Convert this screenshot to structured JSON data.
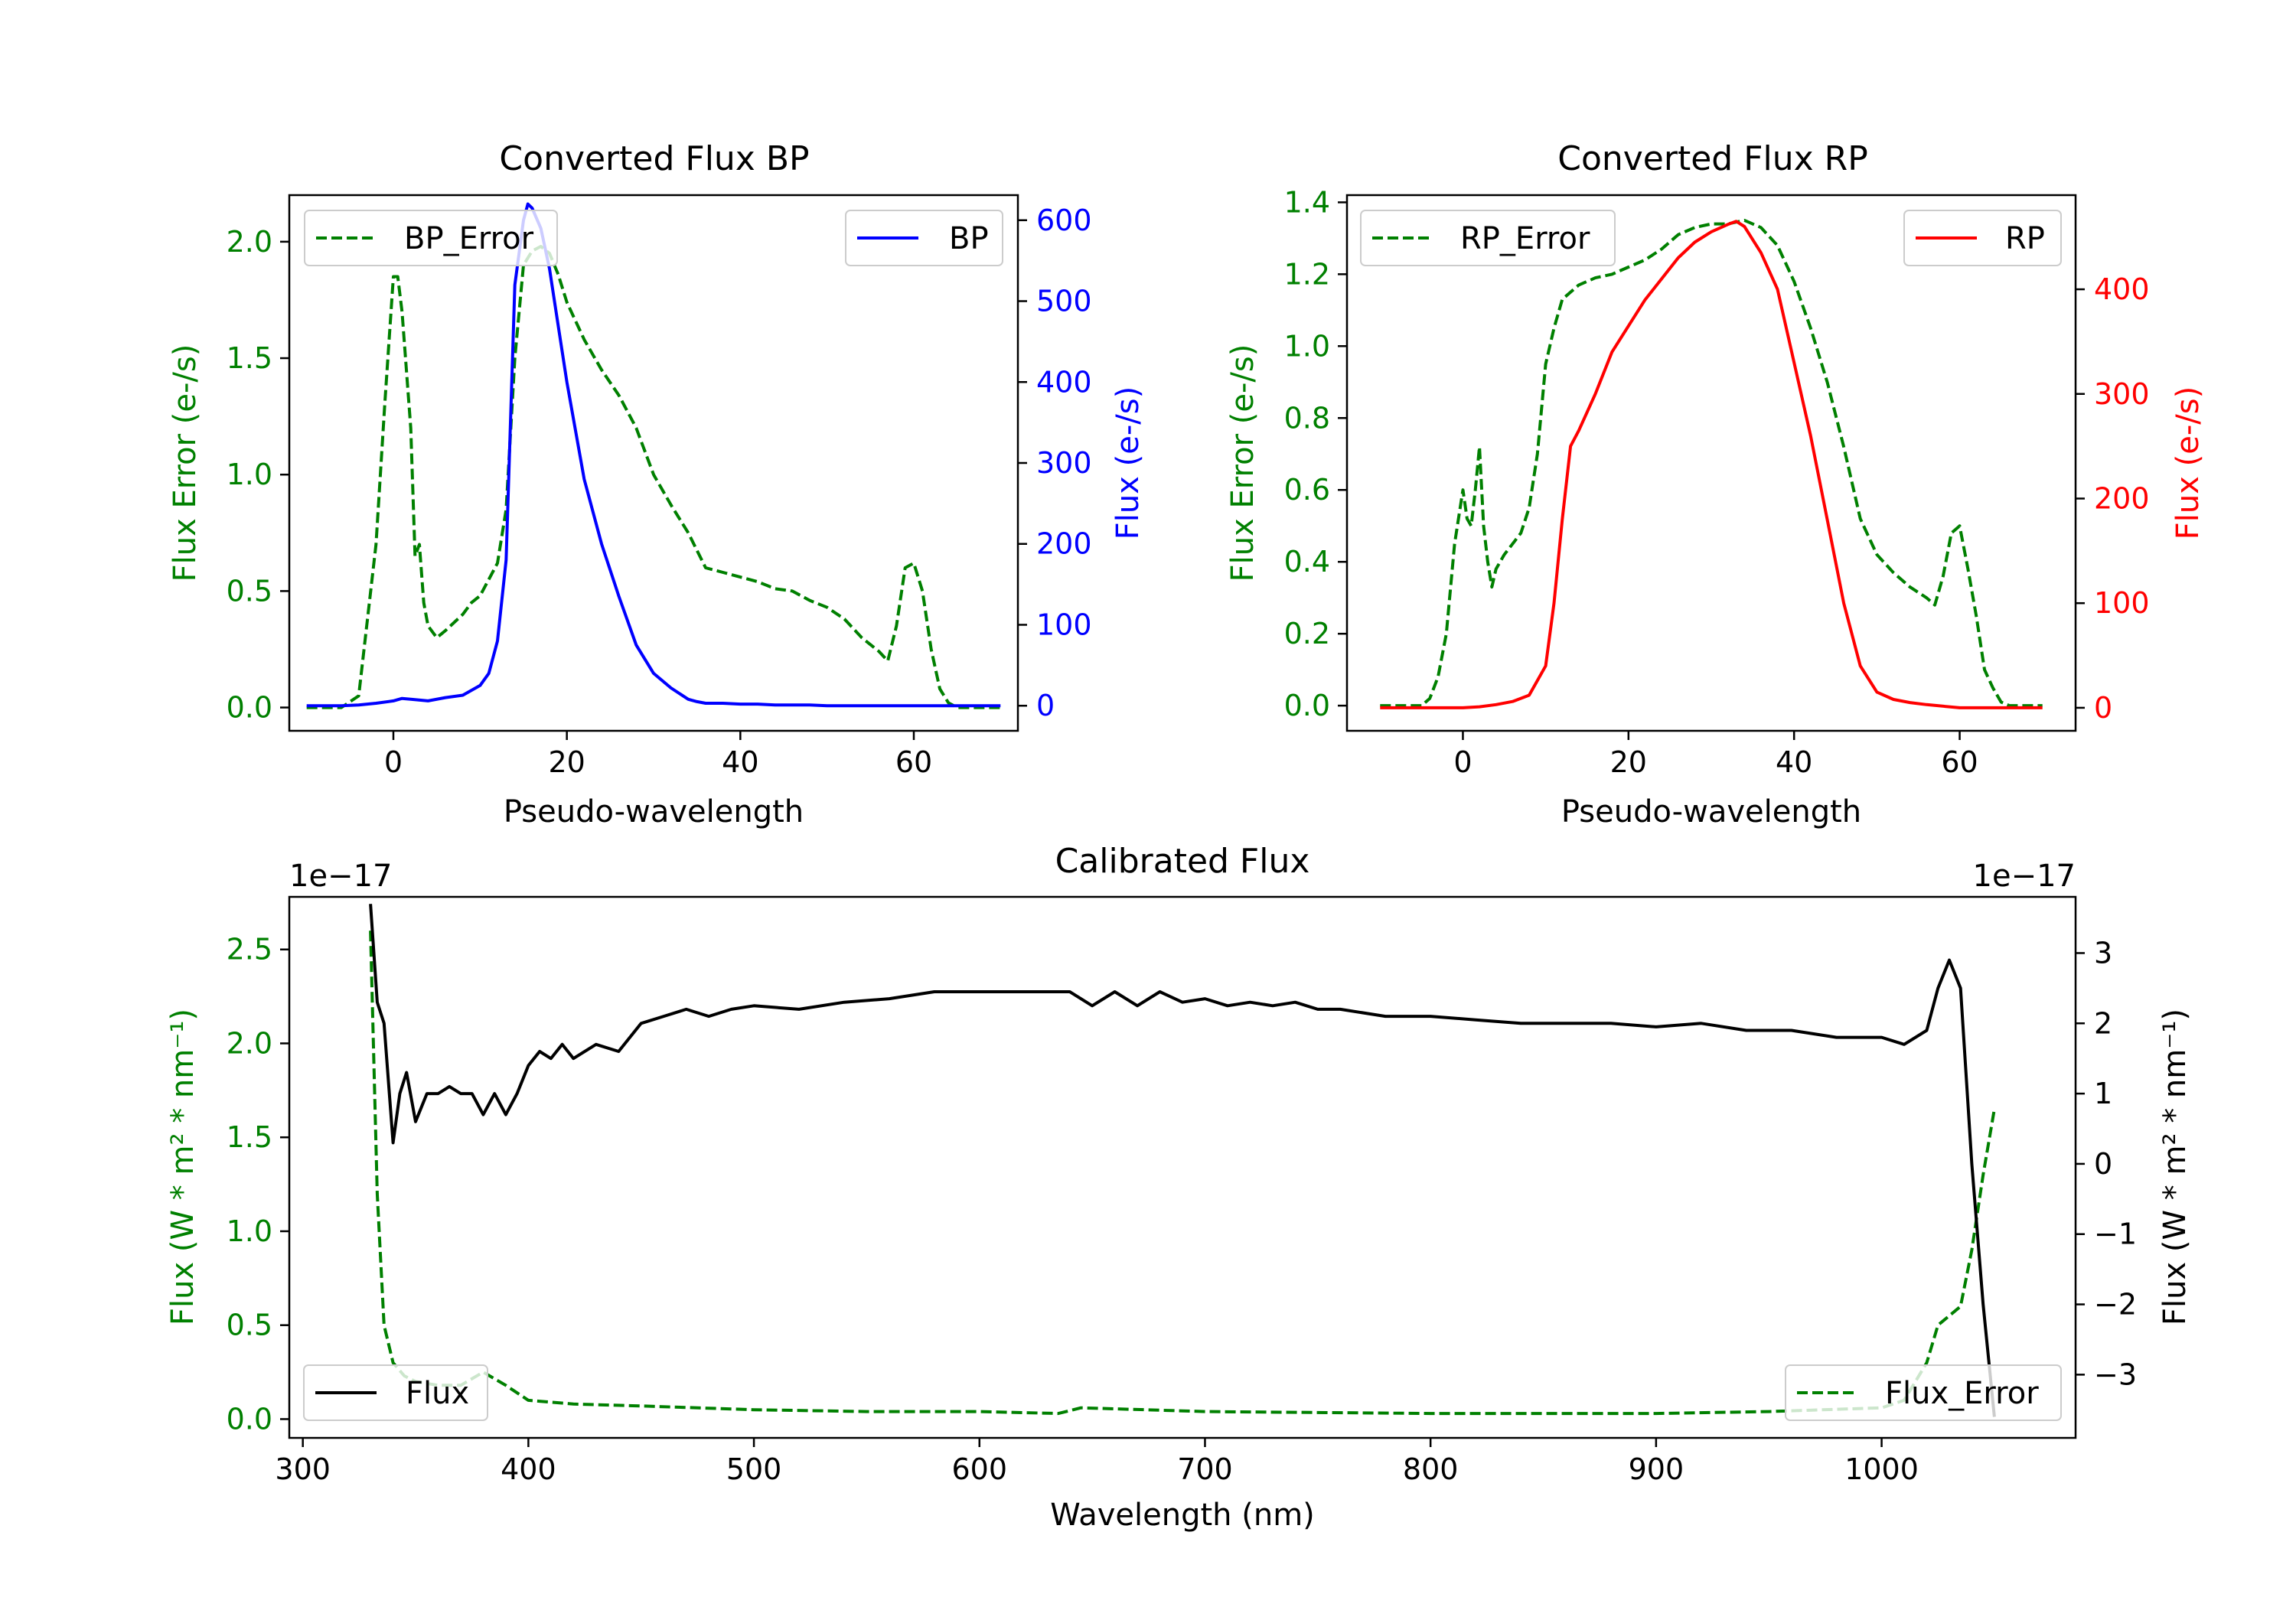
{
  "figure": {
    "title": ""
  },
  "chart_data": [
    {
      "id": "bp",
      "type": "line",
      "title": "Converted Flux BP",
      "xlabel": "Pseudo-wavelength",
      "xlim": [
        -12,
        72
      ],
      "xticks": [
        0,
        20,
        40,
        60
      ],
      "xtick_labels": [
        "0",
        "20",
        "40",
        "60"
      ],
      "left_axis": {
        "label": "Flux Error (e-/s)",
        "color": "#008000",
        "ylim": [
          -0.1,
          2.2
        ],
        "ticks": [
          0.0,
          0.5,
          1.0,
          1.5,
          2.0
        ],
        "tick_labels": [
          "0.0",
          "0.5",
          "1.0",
          "1.5",
          "2.0"
        ]
      },
      "right_axis": {
        "label": "Flux (e-/s)",
        "color": "#0000ff",
        "ylim": [
          -31,
          631
        ],
        "ticks": [
          0,
          100,
          200,
          300,
          400,
          500,
          600
        ],
        "tick_labels": [
          "0",
          "100",
          "200",
          "300",
          "400",
          "500",
          "600"
        ]
      },
      "series": [
        {
          "name": "BP_Error",
          "axis": "left",
          "style": "dashed",
          "color": "#008000",
          "x": [
            -10,
            -6,
            -4,
            -2,
            -1,
            0,
            0.5,
            1,
            2,
            2.5,
            3,
            3.5,
            4,
            5,
            6,
            8,
            9,
            10,
            12,
            13,
            14,
            15,
            16,
            17,
            18,
            19,
            20,
            22,
            24,
            26,
            28,
            30,
            32,
            34,
            36,
            38,
            40,
            42,
            44,
            46,
            48,
            50,
            52,
            54,
            56,
            57,
            58,
            59,
            60,
            61,
            62,
            63,
            64,
            65,
            66,
            68,
            70
          ],
          "y": [
            0,
            0,
            0.05,
            0.7,
            1.3,
            1.85,
            1.85,
            1.7,
            1.2,
            0.65,
            0.7,
            0.45,
            0.35,
            0.3,
            0.33,
            0.4,
            0.45,
            0.48,
            0.62,
            0.85,
            1.5,
            1.9,
            1.96,
            1.98,
            1.95,
            1.86,
            1.74,
            1.58,
            1.45,
            1.34,
            1.2,
            1.0,
            0.87,
            0.75,
            0.6,
            0.58,
            0.56,
            0.54,
            0.51,
            0.5,
            0.46,
            0.43,
            0.38,
            0.3,
            0.24,
            0.2,
            0.35,
            0.6,
            0.62,
            0.5,
            0.25,
            0.08,
            0.02,
            0,
            0,
            0,
            0
          ]
        },
        {
          "name": "BP",
          "axis": "right",
          "style": "solid",
          "color": "#0000ff",
          "x": [
            -10,
            -6,
            -4,
            -2,
            0,
            1,
            2,
            4,
            6,
            8,
            10,
            11,
            12,
            13,
            14,
            15,
            15.5,
            16,
            17,
            18,
            19,
            20,
            22,
            24,
            26,
            28,
            30,
            32,
            34,
            35,
            36,
            38,
            40,
            42,
            44,
            46,
            48,
            50,
            55,
            60,
            65,
            70
          ],
          "y": [
            0,
            0,
            1,
            3,
            6,
            9,
            8,
            6,
            10,
            13,
            25,
            40,
            80,
            180,
            520,
            600,
            620,
            615,
            590,
            540,
            470,
            400,
            280,
            200,
            135,
            75,
            40,
            22,
            8,
            5,
            3,
            3,
            2,
            2,
            1,
            1,
            1,
            0,
            0,
            0,
            0,
            0
          ]
        }
      ],
      "legend": [
        {
          "label": "BP_Error",
          "position": "upper-left"
        },
        {
          "label": "BP",
          "position": "upper-right"
        }
      ]
    },
    {
      "id": "rp",
      "type": "line",
      "title": "Converted Flux RP",
      "xlabel": "Pseudo-wavelength",
      "xlim": [
        -14,
        74
      ],
      "xticks": [
        0,
        20,
        40,
        60
      ],
      "xtick_labels": [
        "0",
        "20",
        "40",
        "60"
      ],
      "left_axis": {
        "label": "Flux Error (e-/s)",
        "color": "#008000",
        "ylim": [
          -0.07,
          1.42
        ],
        "ticks": [
          0.0,
          0.2,
          0.4,
          0.6,
          0.8,
          1.0,
          1.2,
          1.4
        ],
        "tick_labels": [
          "0.0",
          "0.2",
          "0.4",
          "0.6",
          "0.8",
          "1.0",
          "1.2",
          "1.4"
        ]
      },
      "right_axis": {
        "label": "Flux (e-/s)",
        "color": "#ff0000",
        "ylim": [
          -22,
          490
        ],
        "ticks": [
          0,
          100,
          200,
          300,
          400
        ],
        "tick_labels": [
          "0",
          "100",
          "200",
          "300",
          "400"
        ]
      },
      "series": [
        {
          "name": "RP_Error",
          "axis": "left",
          "style": "dashed",
          "color": "#008000",
          "x": [
            -10,
            -5,
            -4,
            -3,
            -2,
            -1,
            0,
            0.5,
            1,
            1.5,
            2,
            2.5,
            3,
            3.5,
            4,
            5,
            6,
            7,
            8,
            9,
            10,
            11,
            12,
            13,
            14,
            16,
            18,
            20,
            22,
            24,
            26,
            28,
            30,
            32,
            34,
            36,
            38,
            40,
            42,
            44,
            46,
            48,
            50,
            52,
            54,
            56,
            57,
            58,
            59,
            60,
            61,
            62,
            63,
            64,
            65,
            66,
            68,
            70
          ],
          "y": [
            0,
            0,
            0.02,
            0.08,
            0.2,
            0.45,
            0.6,
            0.52,
            0.5,
            0.6,
            0.72,
            0.5,
            0.4,
            0.33,
            0.38,
            0.42,
            0.45,
            0.48,
            0.55,
            0.7,
            0.95,
            1.05,
            1.13,
            1.15,
            1.17,
            1.19,
            1.2,
            1.22,
            1.24,
            1.27,
            1.31,
            1.33,
            1.34,
            1.34,
            1.35,
            1.33,
            1.28,
            1.18,
            1.05,
            0.9,
            0.72,
            0.52,
            0.42,
            0.37,
            0.33,
            0.3,
            0.28,
            0.36,
            0.48,
            0.5,
            0.38,
            0.25,
            0.1,
            0.05,
            0.01,
            0,
            0,
            0
          ]
        },
        {
          "name": "RP",
          "axis": "right",
          "style": "solid",
          "color": "#ff0000",
          "x": [
            -10,
            -5,
            0,
            2,
            4,
            6,
            8,
            10,
            11,
            12,
            13,
            14,
            16,
            18,
            20,
            22,
            24,
            26,
            28,
            30,
            32,
            33,
            34,
            36,
            38,
            40,
            42,
            44,
            46,
            48,
            50,
            52,
            54,
            56,
            60,
            65,
            70
          ],
          "y": [
            0,
            0,
            0,
            1,
            3,
            6,
            12,
            40,
            100,
            180,
            250,
            265,
            300,
            340,
            365,
            390,
            410,
            430,
            445,
            455,
            462,
            465,
            460,
            435,
            400,
            330,
            260,
            180,
            100,
            40,
            15,
            8,
            5,
            3,
            0,
            0,
            0
          ]
        }
      ],
      "legend": [
        {
          "label": "RP_Error",
          "position": "upper-left"
        },
        {
          "label": "RP",
          "position": "upper-right"
        }
      ]
    },
    {
      "id": "cal",
      "type": "line",
      "title": "Calibrated Flux",
      "xlabel": "Wavelength (nm)",
      "xlim": [
        294,
        1086
      ],
      "xticks": [
        300,
        400,
        500,
        600,
        700,
        800,
        900,
        1000
      ],
      "xtick_labels": [
        "300",
        "400",
        "500",
        "600",
        "700",
        "800",
        "900",
        "1000"
      ],
      "left_axis": {
        "label": "Flux (W * m² * nm⁻¹)",
        "color": "#008000",
        "offset_text": "1e−17",
        "ylim": [
          -0.1,
          2.78
        ],
        "ticks": [
          0.0,
          0.5,
          1.0,
          1.5,
          2.0,
          2.5
        ],
        "tick_labels": [
          "0.0",
          "0.5",
          "1.0",
          "1.5",
          "2.0",
          "2.5"
        ]
      },
      "right_axis": {
        "label": "Flux (W * m² * nm⁻¹)",
        "color": "#000000",
        "offset_text": "1e−17",
        "ylim": [
          -3.9,
          3.8
        ],
        "ticks": [
          -3,
          -2,
          -1,
          0,
          1,
          2,
          3
        ],
        "tick_labels": [
          "−3",
          "−2",
          "−1",
          "0",
          "1",
          "2",
          "3"
        ]
      },
      "series": [
        {
          "name": "Flux_Error",
          "axis": "left",
          "style": "dashed",
          "color": "#008000",
          "x": [
            330,
            333,
            336,
            340,
            345,
            350,
            360,
            370,
            380,
            390,
            400,
            420,
            450,
            500,
            550,
            600,
            635,
            645,
            700,
            800,
            900,
            950,
            1000,
            1010,
            1020,
            1025,
            1030,
            1035,
            1040,
            1045,
            1050
          ],
          "y": [
            2.6,
            1.2,
            0.5,
            0.3,
            0.23,
            0.2,
            0.18,
            0.18,
            0.25,
            0.18,
            0.1,
            0.08,
            0.07,
            0.05,
            0.04,
            0.04,
            0.03,
            0.06,
            0.04,
            0.03,
            0.03,
            0.04,
            0.06,
            0.1,
            0.3,
            0.5,
            0.55,
            0.6,
            0.9,
            1.3,
            1.65
          ]
        },
        {
          "name": "Flux",
          "axis": "right",
          "style": "solid",
          "color": "#000000",
          "x": [
            330,
            333,
            336,
            340,
            343,
            346,
            350,
            355,
            360,
            365,
            370,
            375,
            380,
            385,
            390,
            395,
            400,
            405,
            410,
            415,
            420,
            430,
            440,
            450,
            460,
            470,
            480,
            490,
            500,
            520,
            540,
            560,
            580,
            600,
            620,
            640,
            650,
            660,
            670,
            680,
            690,
            700,
            710,
            720,
            730,
            740,
            750,
            760,
            780,
            800,
            820,
            840,
            860,
            880,
            900,
            920,
            940,
            960,
            980,
            1000,
            1010,
            1020,
            1025,
            1030,
            1035,
            1040,
            1045,
            1050
          ],
          "y": [
            3.7,
            2.3,
            2.0,
            0.3,
            1.0,
            1.3,
            0.6,
            1.0,
            1.0,
            1.1,
            1.0,
            1.0,
            0.7,
            1.0,
            0.7,
            1.0,
            1.4,
            1.6,
            1.5,
            1.7,
            1.5,
            1.7,
            1.6,
            2.0,
            2.1,
            2.2,
            2.1,
            2.2,
            2.25,
            2.2,
            2.3,
            2.35,
            2.45,
            2.45,
            2.45,
            2.45,
            2.25,
            2.45,
            2.25,
            2.45,
            2.3,
            2.35,
            2.25,
            2.3,
            2.25,
            2.3,
            2.2,
            2.2,
            2.1,
            2.1,
            2.05,
            2.0,
            2.0,
            2.0,
            1.95,
            2.0,
            1.9,
            1.9,
            1.8,
            1.8,
            1.7,
            1.9,
            2.5,
            2.9,
            2.5,
            0,
            -2.0,
            -3.6
          ]
        }
      ],
      "legend": [
        {
          "label": "Flux",
          "position": "lower-left"
        },
        {
          "label": "Flux_Error",
          "position": "lower-right"
        }
      ]
    }
  ]
}
